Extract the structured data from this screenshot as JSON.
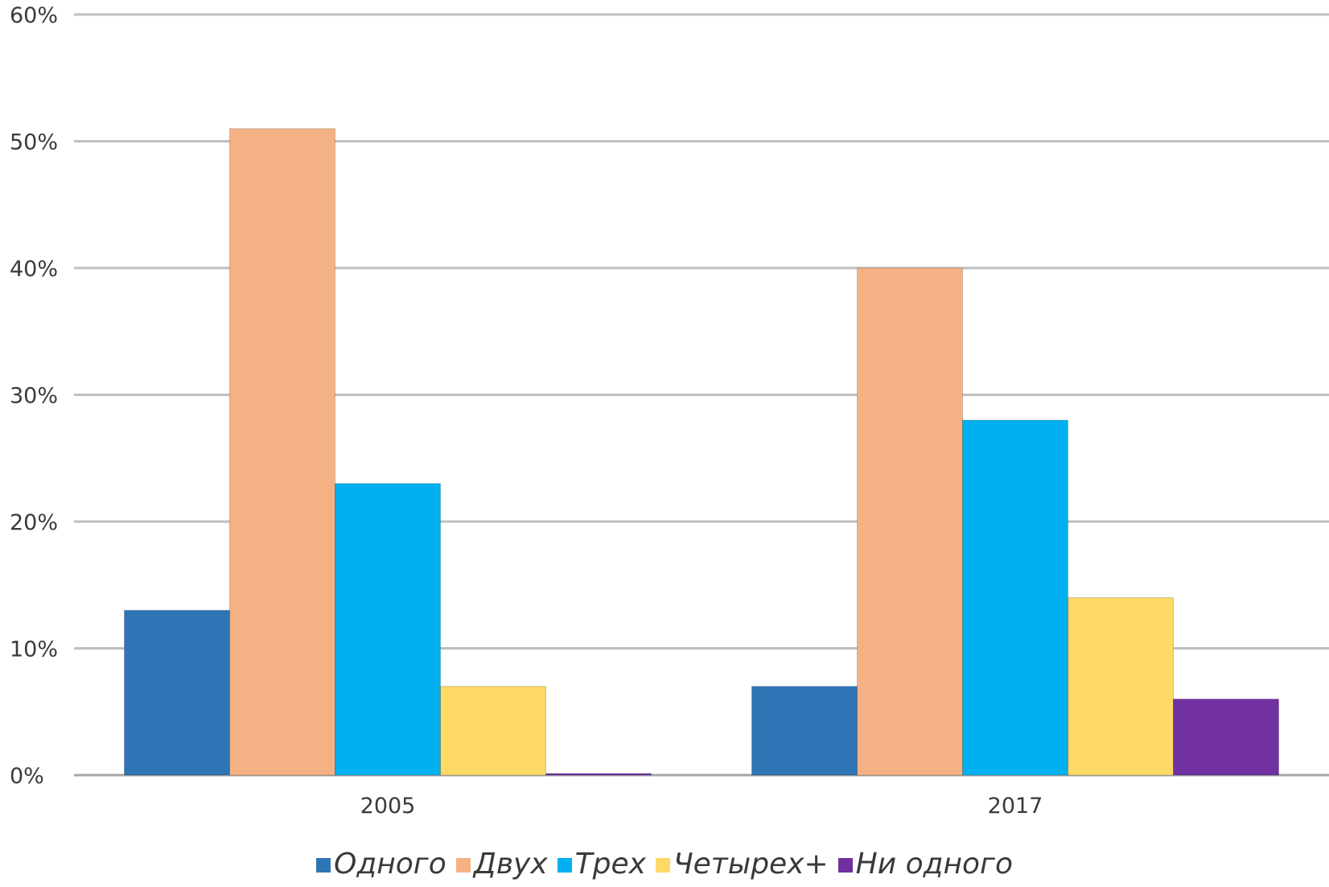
{
  "chart_data": {
    "type": "bar",
    "title": "",
    "xlabel": "",
    "ylabel": "",
    "categories": [
      "2005",
      "2017"
    ],
    "series": [
      {
        "name": "Одного",
        "values": [
          13,
          7
        ],
        "color": "#2e75b6"
      },
      {
        "name": "Двух",
        "values": [
          51,
          40
        ],
        "color": "#f4b183"
      },
      {
        "name": "Трех",
        "values": [
          23,
          28
        ],
        "color": "#00b0f0"
      },
      {
        "name": "Четырех+",
        "values": [
          7,
          14
        ],
        "color": "#ffd966"
      },
      {
        "name": "Ни одного",
        "values": [
          0,
          6
        ],
        "color": "#7030a0"
      }
    ],
    "ylim": [
      0,
      60
    ],
    "yticks": [
      "0%",
      "10%",
      "20%",
      "30%",
      "40%",
      "50%",
      "60%"
    ],
    "grid": true,
    "legend_position": "bottom"
  }
}
